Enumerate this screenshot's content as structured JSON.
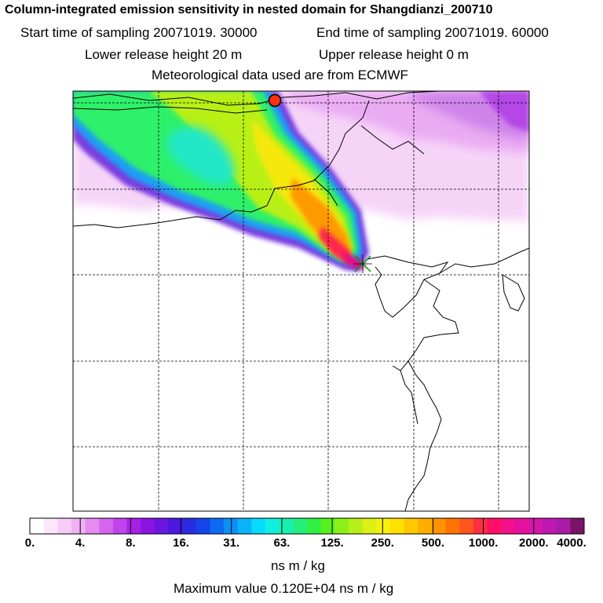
{
  "header": {
    "title": "Column-integrated emission sensitivity in nested domain for Shangdianzi_200710",
    "start_label": "Start time of sampling 20071019. 30000",
    "end_label": "End time of sampling 20071019. 60000",
    "lower_label": "Lower release height   20 m",
    "upper_label": "Upper release height    0 m",
    "met_label": "Meteorological data used are from ECMWF"
  },
  "colorbar": {
    "labels": [
      "0.",
      "4.",
      "8.",
      "16.",
      "31.",
      "63.",
      "125.",
      "250.",
      "500.",
      "1000.",
      "2000.",
      "4000."
    ],
    "colors": [
      "#ffffff",
      "#fbe6fb",
      "#f6ccf8",
      "#f0b0f6",
      "#e48cf2",
      "#d466ee",
      "#c044ec",
      "#a820e8",
      "#8a14e2",
      "#6a16e0",
      "#4a18e0",
      "#2a2ce4",
      "#1444ea",
      "#0e6af0",
      "#0c90f6",
      "#0ab4fa",
      "#08dcfe",
      "#10f0e0",
      "#18f0b0",
      "#22f078",
      "#30f040",
      "#5af020",
      "#8cf018",
      "#b6f018",
      "#dcf014",
      "#f6f010",
      "#ffe000",
      "#ffc800",
      "#ffae00",
      "#ff9200",
      "#ff7400",
      "#ff5620",
      "#ff3044",
      "#ff1066",
      "#f4108a",
      "#e6109e",
      "#d416aa",
      "#c018b2",
      "#a81ca8",
      "#7a1466"
    ],
    "unit_label": "ns m / kg",
    "max_label": "Maximum value  0.120E+04 ns m / kg"
  },
  "map": {
    "release_marker": "release-circle",
    "receptor_marker": "receptor-cross",
    "release_color": "#ff3010",
    "receptor_color": "#00a000"
  }
}
